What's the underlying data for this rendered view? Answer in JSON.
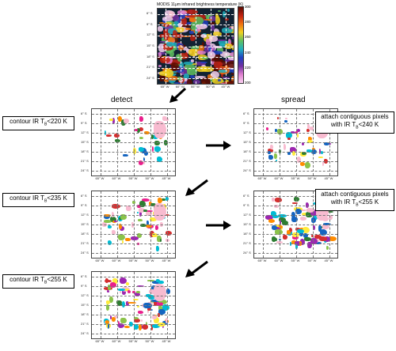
{
  "top_map": {
    "title": "MODIS 11μm infrared brightness temperature (K)",
    "colorbar_ticks": [
      "300",
      "280",
      "260",
      "240",
      "220",
      "200"
    ]
  },
  "lat_ticks": [
    "6° S",
    "9° S",
    "12° S",
    "15° S",
    "18° S",
    "21° S",
    "24° S"
  ],
  "lon_ticks": [
    "65° W",
    "60° W",
    "55° W",
    "50° W",
    "45° W"
  ],
  "headers": {
    "detect": "detect",
    "spread": "spread"
  },
  "steps": {
    "detect_1": {
      "prefix": "contour IR T",
      "sub": "B",
      "suffix": "<220 K"
    },
    "detect_2": {
      "prefix": "contour IR T",
      "sub": "B",
      "suffix": "<235 K"
    },
    "detect_3": {
      "prefix": "contour IR T",
      "sub": "B",
      "suffix": "<255 K"
    },
    "spread_1": {
      "line1": "attach contiguous pixels",
      "prefix": "with IR T",
      "sub": "B",
      "suffix": "<240 K"
    },
    "spread_2": {
      "line1": "attach contiguous pixels",
      "prefix": "with IR T",
      "sub": "B",
      "suffix": "<255 K"
    }
  },
  "colors": {
    "colormap": [
      "#5a0a00",
      "#c02010",
      "#f07010",
      "#f0d020",
      "#60c060",
      "#20b0c0",
      "#2040c0",
      "#7030a0",
      "#e080d0",
      "#f8d0f0"
    ],
    "blob_palette": [
      "#e91e8c",
      "#ff8c00",
      "#2e7d32",
      "#1565c0",
      "#00bcd4",
      "#9c27b0",
      "#ffeb3b",
      "#f8bbd0",
      "#d32f2f",
      "#8bc34a"
    ]
  }
}
